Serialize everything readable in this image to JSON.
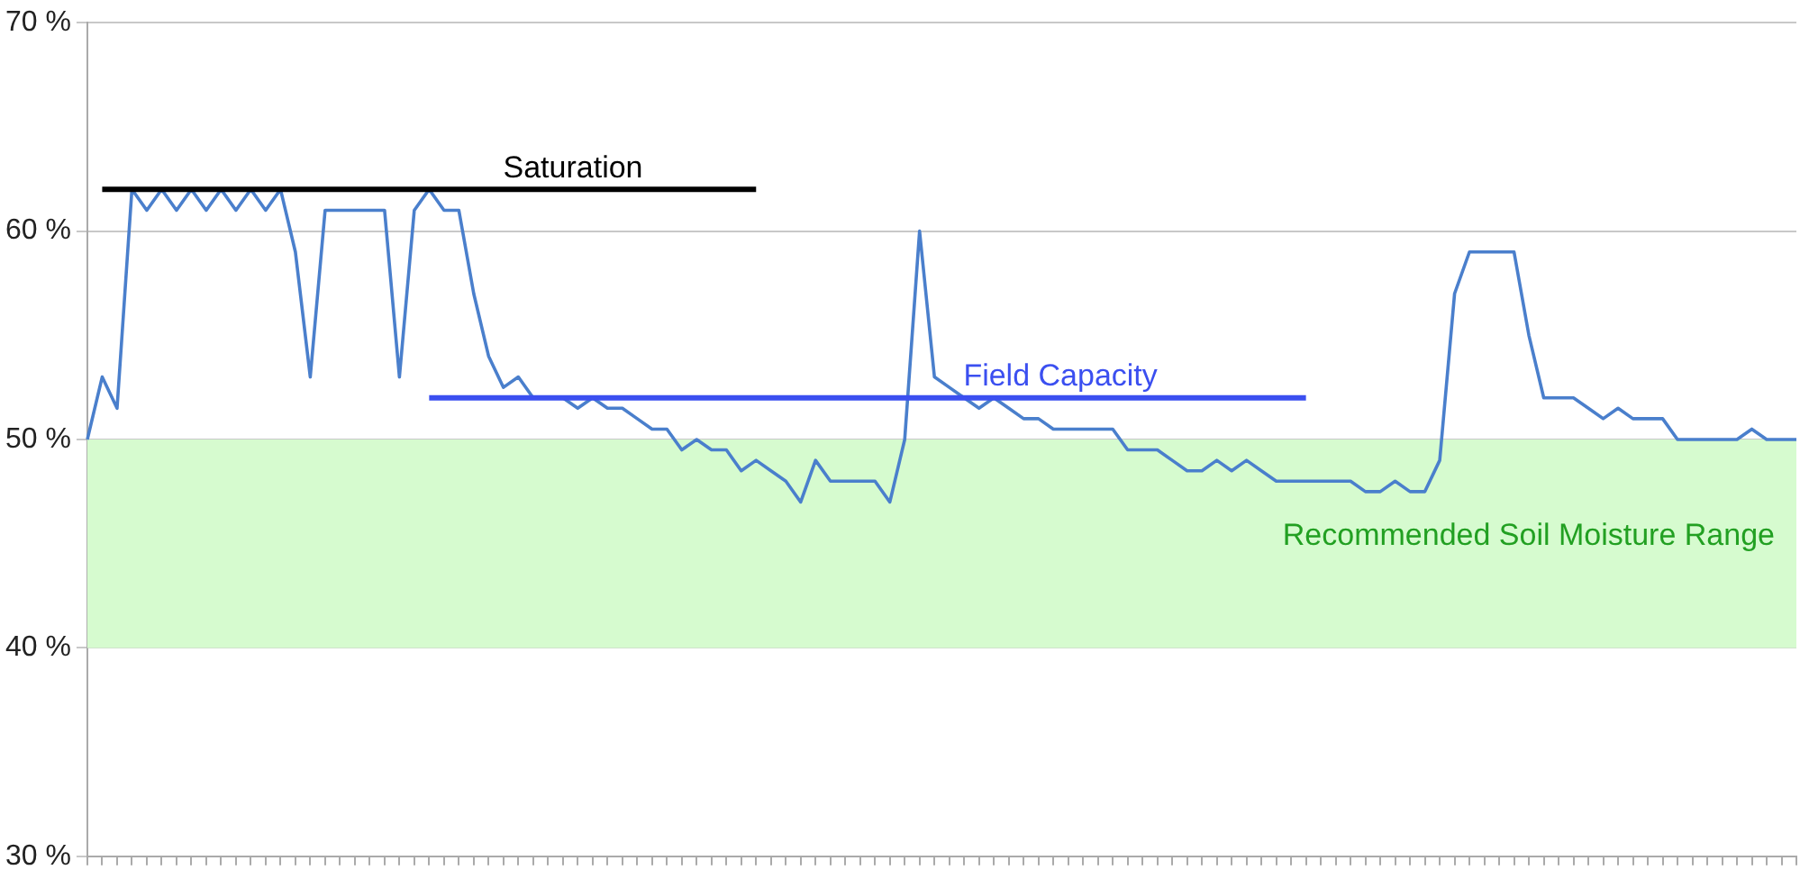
{
  "chart_data": {
    "type": "line",
    "categories": [
      null,
      null,
      null,
      null,
      null,
      null,
      null,
      null,
      null,
      null,
      null,
      null,
      null,
      null,
      null,
      null,
      null,
      null,
      null,
      null,
      null,
      null,
      null,
      null,
      null,
      null,
      null,
      null,
      null,
      null,
      null,
      null,
      null,
      null,
      null,
      null,
      null,
      null,
      null,
      null,
      null,
      null,
      null,
      null,
      null,
      null,
      null,
      null,
      null,
      null,
      null,
      null,
      null,
      null,
      null,
      null,
      null,
      null,
      null,
      null,
      null,
      null,
      null,
      null,
      null,
      null,
      null,
      null,
      null,
      null,
      null,
      null,
      null,
      null,
      null,
      null,
      null,
      null,
      null,
      null,
      null,
      null,
      null,
      null,
      null,
      null,
      null,
      null,
      null,
      null,
      null,
      null,
      null,
      null,
      null,
      null,
      null,
      null,
      null,
      null,
      null,
      null,
      null,
      null,
      null,
      null,
      null,
      null,
      null,
      null,
      null,
      null,
      null,
      null,
      null,
      null
    ],
    "series": [
      {
        "color": "#4a7fcc",
        "values": [
          50,
          53,
          51.5,
          62,
          61,
          62,
          61,
          62,
          61,
          62,
          61,
          62,
          61,
          62,
          59,
          53,
          61,
          61,
          61,
          61,
          61,
          53,
          61,
          62,
          61,
          61,
          57,
          54,
          52.5,
          53,
          52,
          52,
          52,
          51.5,
          52,
          51.5,
          51.5,
          51,
          50.5,
          50.5,
          49.5,
          50,
          49.5,
          49.5,
          48.5,
          49,
          48.5,
          48,
          47,
          49,
          48,
          48,
          48,
          48,
          47,
          50,
          60,
          53,
          52.5,
          52,
          51.5,
          52,
          51.5,
          51,
          51,
          50.5,
          50.5,
          50.5,
          50.5,
          50.5,
          49.5,
          49.5,
          49.5,
          49,
          48.5,
          48.5,
          49,
          48.5,
          49,
          48.5,
          48,
          48,
          48,
          48,
          48,
          48,
          47.5,
          47.5,
          48,
          47.5,
          47.5,
          49,
          57,
          59,
          59,
          59,
          59,
          55,
          52,
          52,
          52,
          51.5,
          51,
          51.5,
          51,
          51,
          51,
          50,
          50,
          50,
          50,
          50,
          50.5,
          50,
          50,
          50
        ]
      },
      {
        "name": "Saturation",
        "color": "#000000",
        "values": [
          null,
          62,
          62,
          62,
          62,
          62,
          62,
          62,
          62,
          62,
          62,
          62,
          62,
          62,
          62,
          62,
          62,
          62,
          62,
          62,
          62,
          62,
          62,
          62,
          62,
          62,
          62,
          62,
          62,
          62,
          62,
          62,
          62,
          62,
          62,
          62,
          62,
          62,
          62,
          62,
          62,
          62,
          62,
          62,
          62,
          62,
          null,
          null,
          null,
          null,
          null,
          null,
          null,
          null,
          null,
          null,
          null,
          null,
          null,
          null,
          null,
          null,
          null,
          null,
          null,
          null,
          null,
          null,
          null,
          null,
          null,
          null,
          null,
          null,
          null,
          null,
          null,
          null,
          null,
          null,
          null,
          null,
          null,
          null,
          null,
          null,
          null,
          null,
          null,
          null,
          null,
          null,
          null,
          null,
          null,
          null,
          null,
          null,
          null,
          null,
          null,
          null,
          null,
          null,
          null,
          null,
          null,
          null,
          null,
          null,
          null,
          null,
          null,
          null,
          null,
          null
        ]
      },
      {
        "name": "Field Capacity",
        "color": "#3b4ff0",
        "values": [
          null,
          null,
          null,
          null,
          null,
          null,
          null,
          null,
          null,
          null,
          null,
          null,
          null,
          null,
          null,
          null,
          null,
          null,
          null,
          null,
          null,
          null,
          null,
          52,
          52,
          52,
          52,
          52,
          52,
          52,
          52,
          52,
          52,
          52,
          52,
          52,
          52,
          52,
          52,
          52,
          52,
          52,
          52,
          52,
          52,
          52,
          52,
          52,
          52,
          52,
          52,
          52,
          52,
          52,
          52,
          52,
          52,
          52,
          52,
          52,
          52,
          52,
          52,
          52,
          52,
          52,
          52,
          52,
          52,
          52,
          52,
          52,
          52,
          52,
          52,
          52,
          52,
          52,
          52,
          52,
          52,
          52,
          52,
          null,
          null,
          null,
          null,
          null,
          null,
          null,
          null,
          null,
          null,
          null,
          null,
          null,
          null,
          null,
          null,
          null,
          null,
          null,
          null,
          null,
          null,
          null,
          null,
          null,
          null,
          null,
          null,
          null,
          null,
          null,
          null,
          null
        ]
      }
    ],
    "ylim": [
      30,
      70
    ],
    "yticks": [
      {
        "value": 30,
        "label": "30 %"
      },
      {
        "value": 40,
        "label": "40 %"
      },
      {
        "value": 50,
        "label": "50 %"
      },
      {
        "value": 60,
        "label": "60 %"
      },
      {
        "value": 70,
        "label": "70 %"
      }
    ],
    "bands": [
      {
        "axis": "y",
        "from": 40,
        "to": 50,
        "label": "Recommended Soil Moisture Range",
        "color": "#d6fbcf"
      }
    ],
    "grid": "y",
    "legend": false,
    "tick_labels": "y",
    "marker": "none",
    "line_style": "solid"
  }
}
